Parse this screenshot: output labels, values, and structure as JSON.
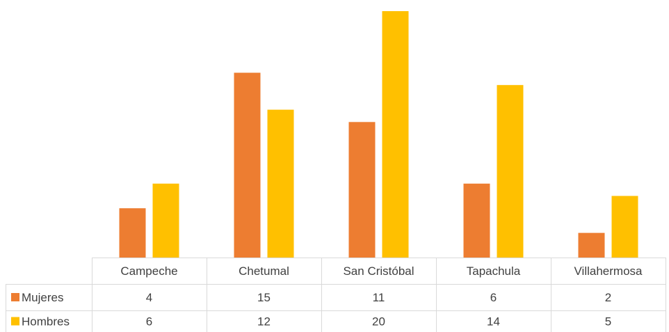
{
  "chart_data": {
    "type": "bar",
    "categories": [
      "Campeche",
      "Chetumal",
      "San Cristóbal",
      "Tapachula",
      "Villahermosa"
    ],
    "series": [
      {
        "name": "Mujeres",
        "values": [
          4,
          15,
          11,
          6,
          2
        ]
      },
      {
        "name": "Hombres",
        "values": [
          6,
          12,
          20,
          14,
          5
        ]
      }
    ],
    "ylim": [
      0,
      20
    ],
    "colors": {
      "Mujeres": "#ED7D31",
      "Hombres": "#FFC000"
    },
    "legend": "data-table",
    "grid": false
  }
}
